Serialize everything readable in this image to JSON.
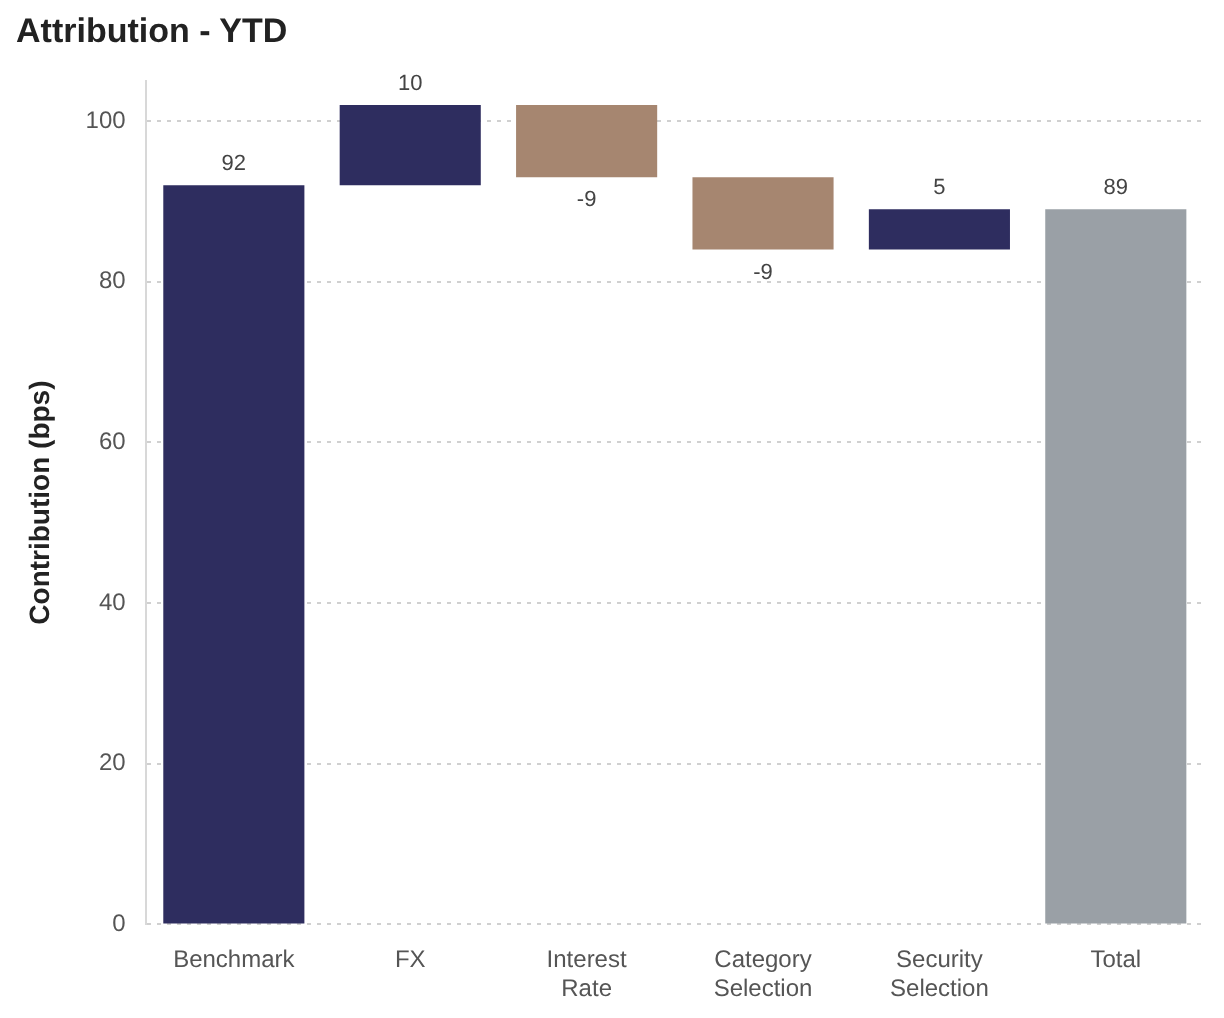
{
  "chart_data": {
    "type": "bar",
    "title": "Attribution - YTD",
    "ylabel": "Contribution (bps)",
    "categories": [
      "Benchmark",
      "FX",
      "Interest Rate",
      "Category Selection",
      "Security Selection",
      "Total"
    ],
    "values": [
      92,
      10,
      -9,
      -9,
      5,
      89
    ],
    "base": [
      0,
      92,
      102,
      93,
      84,
      0
    ],
    "colors": [
      "#2e2d5f",
      "#2e2d5f",
      "#a68670",
      "#a68670",
      "#2e2d5f",
      "#9aa0a6"
    ],
    "ylim": [
      0,
      105
    ],
    "yticks": [
      0,
      20,
      40,
      60,
      80,
      100
    ],
    "grid": "y",
    "legend": false,
    "data_labels": true
  }
}
